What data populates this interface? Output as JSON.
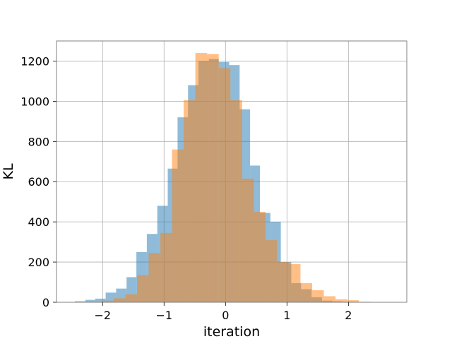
{
  "chart_data": {
    "type": "bar",
    "title": "",
    "xlabel": "iteration",
    "ylabel": "KL",
    "xlim": [
      -2.75,
      2.95
    ],
    "ylim": [
      0,
      1300
    ],
    "xticks": [
      -2,
      -1,
      0,
      1,
      2
    ],
    "xtick_labels": [
      "−2",
      "−1",
      "0",
      "1",
      "2"
    ],
    "yticks": [
      0,
      200,
      400,
      600,
      800,
      1000,
      1200
    ],
    "ytick_labels": [
      "0",
      "200",
      "400",
      "600",
      "800",
      "1000",
      "1200"
    ],
    "grid": true,
    "legend": false,
    "series": [
      {
        "color": "#1f77b4",
        "opacity": 0.5,
        "bins": [
          [
            -2.45,
            -2.28,
            5
          ],
          [
            -2.28,
            -2.12,
            12
          ],
          [
            -2.12,
            -1.95,
            18
          ],
          [
            -1.95,
            -1.78,
            48
          ],
          [
            -1.78,
            -1.61,
            68
          ],
          [
            -1.61,
            -1.45,
            125
          ],
          [
            -1.45,
            -1.28,
            250
          ],
          [
            -1.28,
            -1.11,
            340
          ],
          [
            -1.11,
            -0.94,
            480
          ],
          [
            -0.94,
            -0.78,
            665
          ],
          [
            -0.78,
            -0.61,
            920
          ],
          [
            -0.61,
            -0.44,
            1080
          ],
          [
            -0.44,
            -0.27,
            1200
          ],
          [
            -0.27,
            -0.11,
            1210
          ],
          [
            -0.11,
            0.06,
            1195
          ],
          [
            0.06,
            0.23,
            1180
          ],
          [
            0.23,
            0.4,
            960
          ],
          [
            0.4,
            0.56,
            680
          ],
          [
            0.56,
            0.73,
            445
          ],
          [
            0.73,
            0.9,
            400
          ],
          [
            0.9,
            1.07,
            200
          ],
          [
            1.07,
            1.23,
            95
          ],
          [
            1.23,
            1.4,
            65
          ],
          [
            1.4,
            1.57,
            25
          ],
          [
            1.57,
            1.74,
            8
          ],
          [
            1.74,
            1.9,
            5
          ],
          [
            1.9,
            2.07,
            3
          ],
          [
            2.07,
            2.24,
            2
          ],
          [
            2.24,
            2.4,
            1
          ],
          [
            2.4,
            2.57,
            1
          ]
        ]
      },
      {
        "color": "#ff7f0e",
        "opacity": 0.5,
        "bins": [
          [
            -2.2,
            -2.01,
            3
          ],
          [
            -2.01,
            -1.82,
            8
          ],
          [
            -1.82,
            -1.63,
            20
          ],
          [
            -1.63,
            -1.44,
            40
          ],
          [
            -1.44,
            -1.25,
            135
          ],
          [
            -1.25,
            -1.06,
            245
          ],
          [
            -1.06,
            -0.87,
            345
          ],
          [
            -0.87,
            -0.68,
            760
          ],
          [
            -0.68,
            -0.49,
            1005
          ],
          [
            -0.49,
            -0.3,
            1240
          ],
          [
            -0.3,
            -0.11,
            1235
          ],
          [
            -0.11,
            0.08,
            1165
          ],
          [
            0.08,
            0.27,
            1005
          ],
          [
            0.27,
            0.46,
            615
          ],
          [
            0.46,
            0.65,
            450
          ],
          [
            0.65,
            0.84,
            310
          ],
          [
            0.84,
            1.03,
            200
          ],
          [
            1.03,
            1.22,
            190
          ],
          [
            1.22,
            1.41,
            95
          ],
          [
            1.41,
            1.6,
            60
          ],
          [
            1.6,
            1.79,
            30
          ],
          [
            1.79,
            1.98,
            15
          ],
          [
            1.98,
            2.17,
            10
          ],
          [
            2.17,
            2.36,
            3
          ]
        ]
      }
    ]
  }
}
